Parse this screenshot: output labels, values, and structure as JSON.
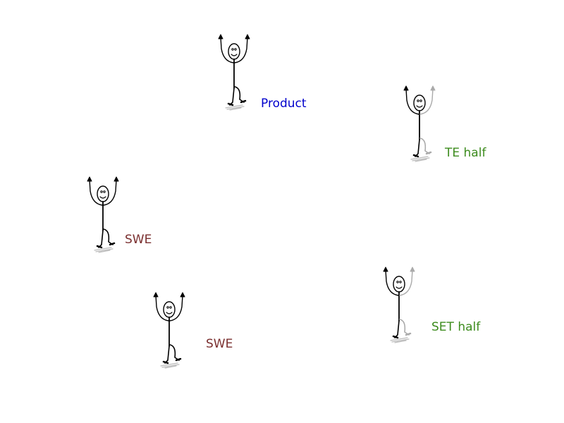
{
  "figures": [
    {
      "label": "Product",
      "label_color": "#0000cc",
      "style": "full"
    },
    {
      "label": "TE half",
      "label_color": "#3d8c1e",
      "style": "half"
    },
    {
      "label": "SWE",
      "label_color": "#7a2e2e",
      "style": "full"
    },
    {
      "label": "SET half",
      "label_color": "#3d8c1e",
      "style": "half"
    },
    {
      "label": "SWE",
      "label_color": "#7a2e2e",
      "style": "full"
    }
  ],
  "colors": {
    "stroke_full": "#000000",
    "stroke_faded": "#aaaaaa",
    "shadow": "#bbbbbb"
  }
}
